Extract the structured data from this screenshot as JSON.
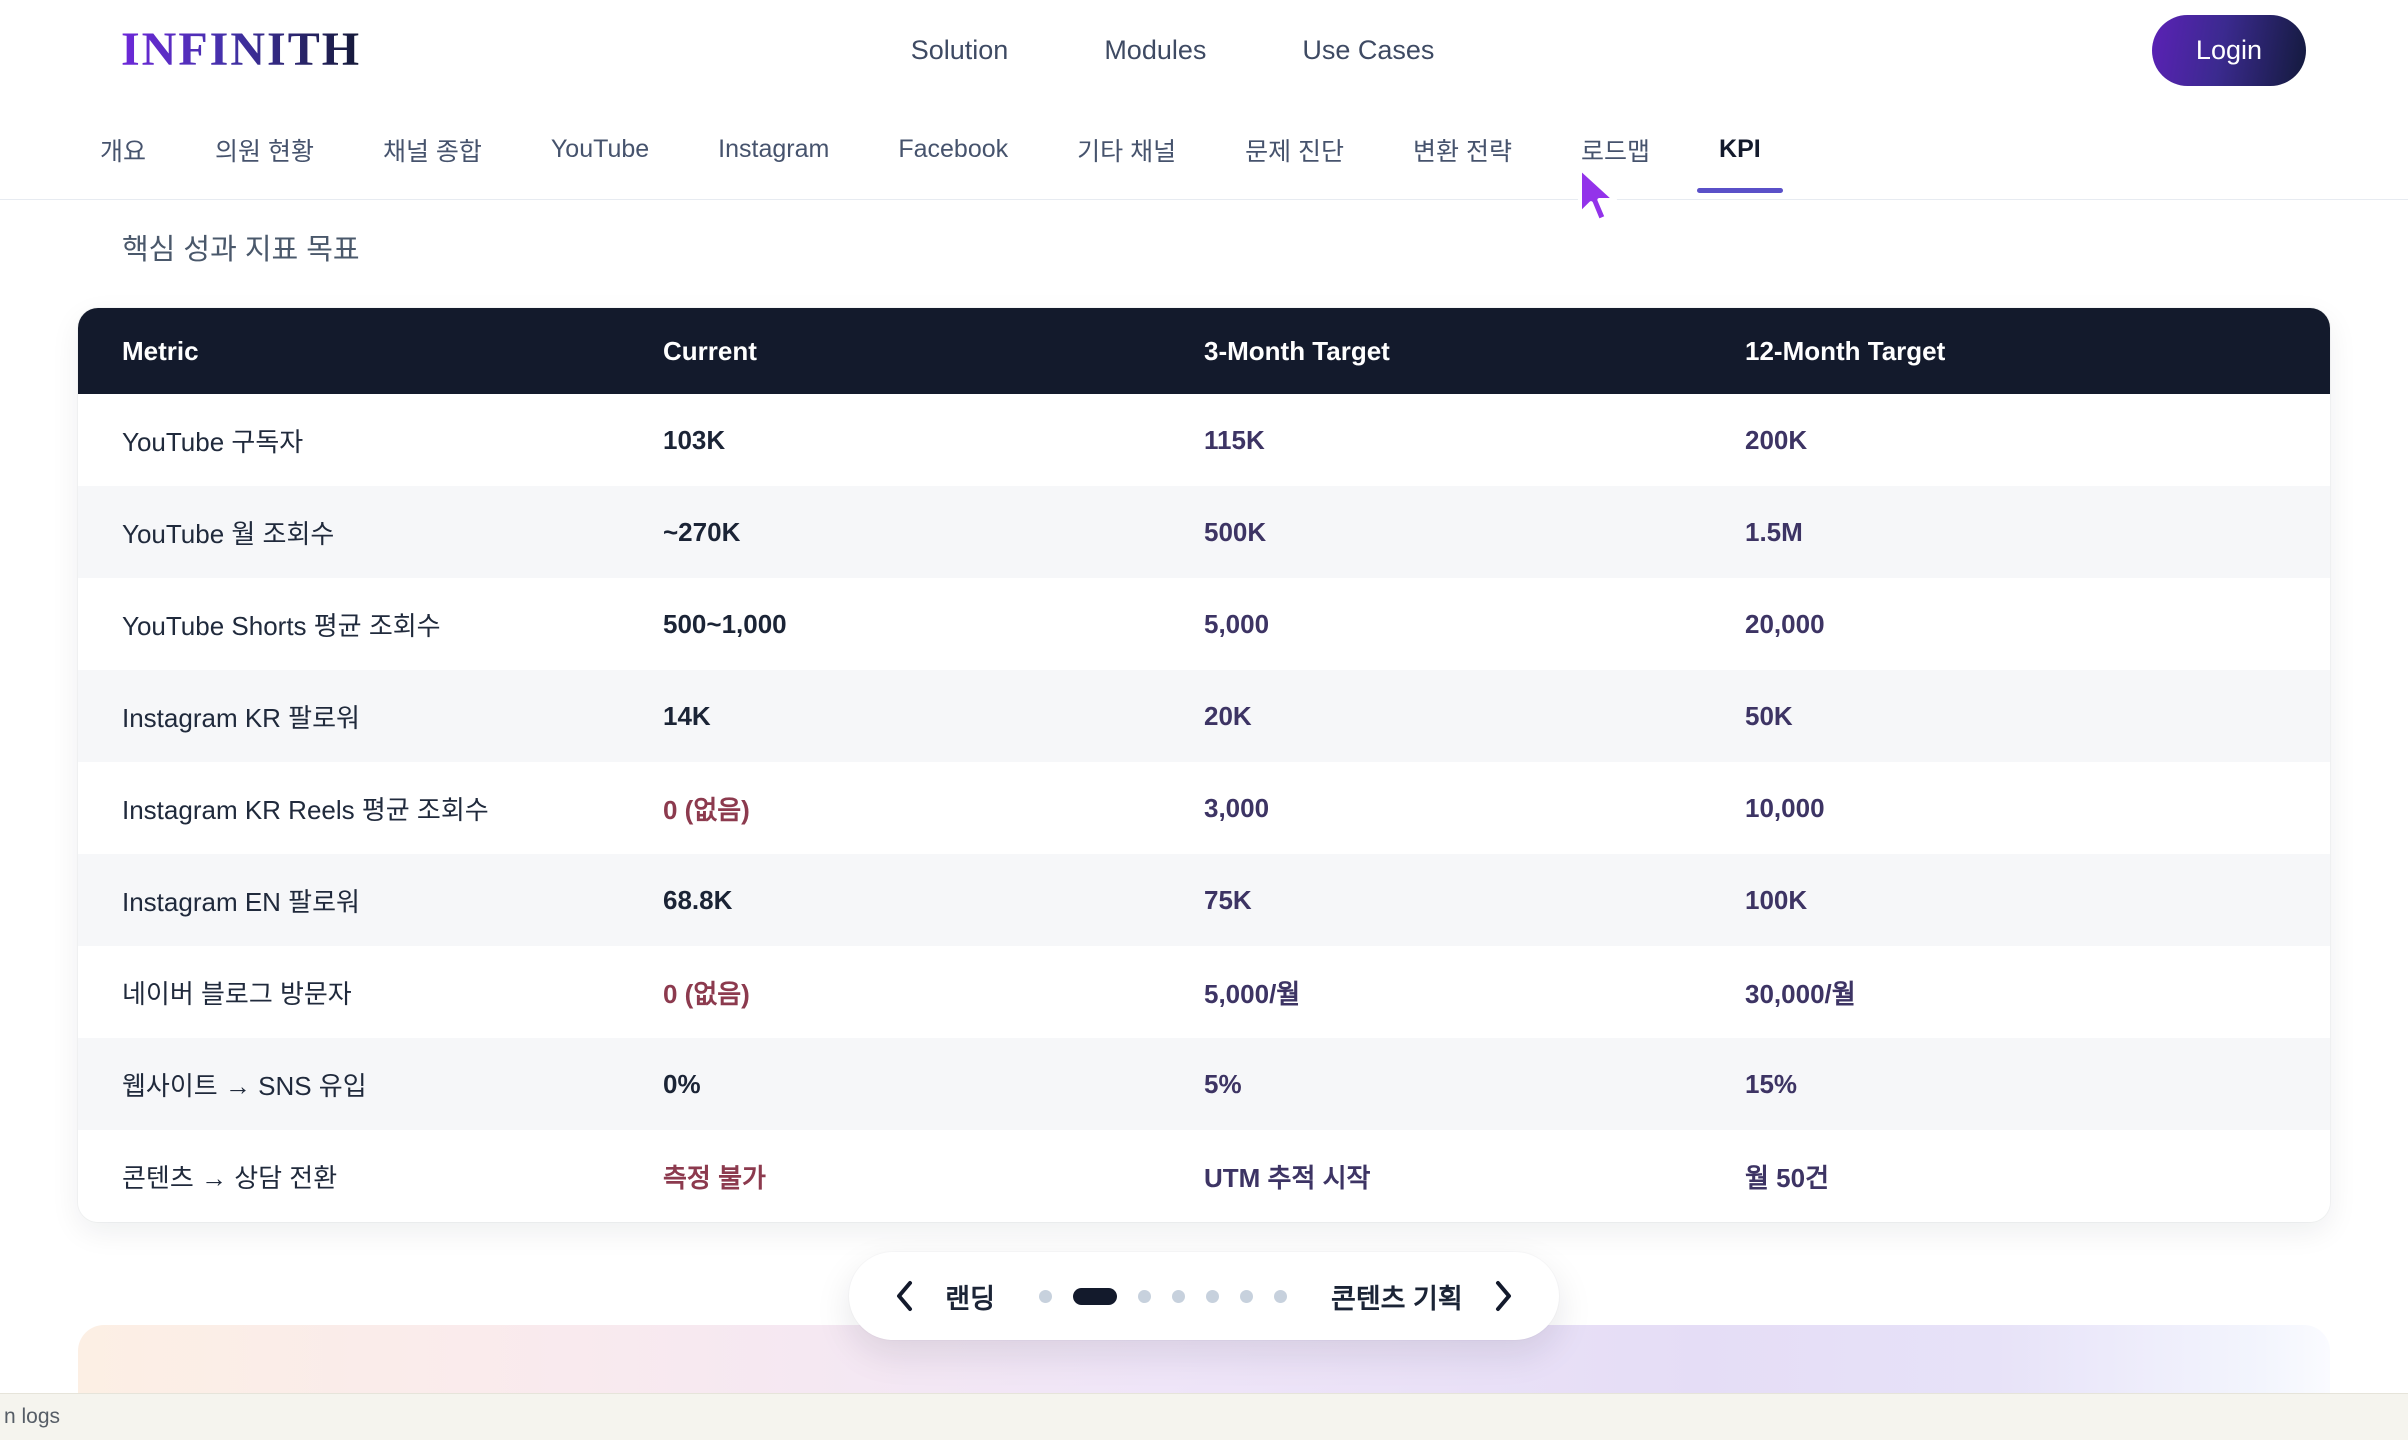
{
  "brand": {
    "logo": "INFINITH"
  },
  "nav": {
    "items": [
      "Solution",
      "Modules",
      "Use Cases"
    ],
    "login_label": "Login"
  },
  "tabs": {
    "items": [
      "개요",
      "의원 현황",
      "채널 종합",
      "YouTube",
      "Instagram",
      "Facebook",
      "기타 채널",
      "문제 진단",
      "변환 전략",
      "로드맵",
      "KPI"
    ],
    "active_index": 10
  },
  "page": {
    "section_title": "핵심 성과 지표 목표"
  },
  "kpi_table": {
    "columns": [
      "Metric",
      "Current",
      "3-Month Target",
      "12-Month Target"
    ],
    "rows": [
      {
        "metric": "YouTube 구독자",
        "current": "103K",
        "negative": false,
        "target3": "115K",
        "target12": "200K"
      },
      {
        "metric": "YouTube 월 조회수",
        "current": "~270K",
        "negative": false,
        "target3": "500K",
        "target12": "1.5M"
      },
      {
        "metric": "YouTube Shorts 평균 조회수",
        "current": "500~1,000",
        "negative": false,
        "target3": "5,000",
        "target12": "20,000"
      },
      {
        "metric": "Instagram KR 팔로워",
        "current": "14K",
        "negative": false,
        "target3": "20K",
        "target12": "50K"
      },
      {
        "metric": "Instagram KR Reels 평균 조회수",
        "current": "0 (없음)",
        "negative": true,
        "target3": "3,000",
        "target12": "10,000"
      },
      {
        "metric": "Instagram EN 팔로워",
        "current": "68.8K",
        "negative": false,
        "target3": "75K",
        "target12": "100K"
      },
      {
        "metric": "네이버 블로그 방문자",
        "current": "0 (없음)",
        "negative": true,
        "target3": "5,000/월",
        "target12": "30,000/월"
      },
      {
        "metric": "웹사이트 → SNS 유입",
        "current": "0%",
        "negative": false,
        "target3": "5%",
        "target12": "15%"
      },
      {
        "metric": "콘텐츠 → 상담 전환",
        "current": "측정 불가",
        "negative": true,
        "target3": "UTM 추적 시작",
        "target12": "월 50건"
      }
    ]
  },
  "pager": {
    "prev_label": "랜딩",
    "next_label": "콘텐츠 기획",
    "dots": {
      "count": 7,
      "active_index": 1
    }
  },
  "statusbar": {
    "text": "n logs"
  },
  "colors": {
    "accent_underline": "#5a50c8",
    "cursor_purple": "#9333ea",
    "table_header_bg": "#131a2c",
    "negative_text": "#8c3a4e",
    "target_text": "#3d3464",
    "row_alt_bg": "#f6f7f9",
    "statusbar_bg": "#f5f4ee"
  }
}
